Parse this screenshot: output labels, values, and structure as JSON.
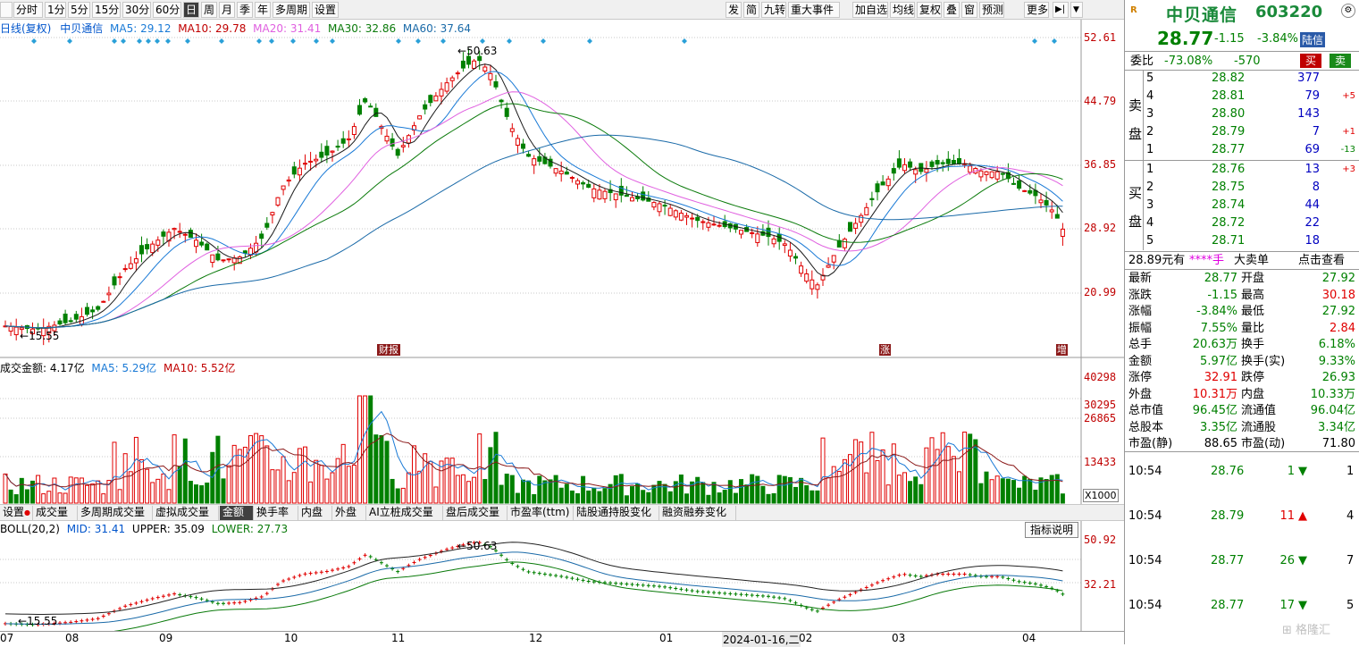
{
  "toolbar_left": [
    "分时",
    "1分",
    "5分",
    "15分",
    "30分",
    "60分",
    "日",
    "周",
    "月",
    "季",
    "年",
    "多周期",
    "设置"
  ],
  "toolbar_active": "日",
  "toolbar_right": [
    "发",
    "简",
    "九转",
    "重大事件",
    "加自选",
    "均线",
    "复权",
    "叠",
    "窗",
    "预测",
    "更多"
  ],
  "main_legend": {
    "title": "日线(复权)",
    "name": "中贝通信",
    "ma5": "MA5: 29.12",
    "ma10": "MA10: 29.78",
    "ma20": "MA20: 31.41",
    "ma30": "MA30: 32.86",
    "ma60": "MA60: 37.64"
  },
  "price_axis": [
    "52.61",
    "44.79",
    "36.85",
    "28.92",
    "20.99"
  ],
  "price_annotations": {
    "high": "50.63",
    "low": "15.55"
  },
  "event_markers": [
    "财报",
    "涨",
    "增"
  ],
  "volume_legend": {
    "title": "成交金额: 4.17亿",
    "ma5": "MA5: 5.29亿",
    "ma10": "MA10: 5.52亿"
  },
  "volume_axis": [
    "40298",
    "30295",
    "26865",
    "13433"
  ],
  "volume_unit": "X1000",
  "indicator_tabs": [
    "设置",
    "成交量",
    "多周期成交量",
    "虚拟成交量",
    "金额",
    "换手率",
    "内盘",
    "外盘",
    "AI立桩成交量",
    "盘后成交量",
    "市盈率(ttm)",
    "陆股通持股变化",
    "融资融券变化"
  ],
  "indicator_active": "金额",
  "boll_legend": {
    "title": "BOLL(20,2)",
    "mid": "MID: 31.41",
    "upper": "UPPER: 35.09",
    "lower": "LOWER: 27.73"
  },
  "boll_button": "指标说明",
  "boll_axis": [
    "50.92",
    "32.21"
  ],
  "boll_annotations": {
    "high": "50.63",
    "low": "15.55"
  },
  "date_axis": [
    "07",
    "08",
    "09",
    "10",
    "11",
    "12",
    "01",
    "2024-01-16,二",
    "02",
    "03",
    "04"
  ],
  "quote": {
    "logo": "R",
    "name": "中贝通信",
    "code": "603220",
    "price": "28.77",
    "change": "-1.15",
    "change_pct": "-3.84%",
    "board": "陆信",
    "weibi_label": "委比",
    "weibi": "-73.08%",
    "weicha": "-570",
    "buy_btn": "买",
    "sell_btn": "卖"
  },
  "sell_label": [
    "卖",
    "盘"
  ],
  "buy_label": [
    "买",
    "盘"
  ],
  "asks": [
    {
      "level": "5",
      "price": "28.82",
      "vol": "377",
      "delta": ""
    },
    {
      "level": "4",
      "price": "28.81",
      "vol": "79",
      "delta": "+5"
    },
    {
      "level": "3",
      "price": "28.80",
      "vol": "143",
      "delta": ""
    },
    {
      "level": "2",
      "price": "28.79",
      "vol": "7",
      "delta": "+1"
    },
    {
      "level": "1",
      "price": "28.77",
      "vol": "69",
      "delta": "-13"
    }
  ],
  "bids": [
    {
      "level": "1",
      "price": "28.76",
      "vol": "13",
      "delta": "+3"
    },
    {
      "level": "2",
      "price": "28.75",
      "vol": "8",
      "delta": ""
    },
    {
      "level": "3",
      "price": "28.74",
      "vol": "44",
      "delta": ""
    },
    {
      "level": "4",
      "price": "28.72",
      "vol": "22",
      "delta": ""
    },
    {
      "level": "5",
      "price": "28.71",
      "vol": "18",
      "delta": ""
    }
  ],
  "bigorder": {
    "price": "28.89元有",
    "qty": "****手",
    "label": "大卖单",
    "link": "点击查看"
  },
  "stats": [
    {
      "l1": "最新",
      "v1": "28.77",
      "c1": "green",
      "l2": "开盘",
      "v2": "27.92",
      "c2": "green"
    },
    {
      "l1": "涨跌",
      "v1": "-1.15",
      "c1": "green",
      "l2": "最高",
      "v2": "30.18",
      "c2": "red"
    },
    {
      "l1": "涨幅",
      "v1": "-3.84%",
      "c1": "green",
      "l2": "最低",
      "v2": "27.92",
      "c2": "green"
    },
    {
      "l1": "振幅",
      "v1": "7.55%",
      "c1": "green",
      "l2": "量比",
      "v2": "2.84",
      "c2": "red"
    },
    {
      "l1": "总手",
      "v1": "20.63万",
      "c1": "green",
      "l2": "换手",
      "v2": "6.18%",
      "c2": "green"
    },
    {
      "l1": "金额",
      "v1": "5.97亿",
      "c1": "green",
      "l2": "换手(实)",
      "v2": "9.33%",
      "c2": "green"
    },
    {
      "l1": "涨停",
      "v1": "32.91",
      "c1": "red",
      "l2": "跌停",
      "v2": "26.93",
      "c2": "green"
    },
    {
      "l1": "外盘",
      "v1": "10.31万",
      "c1": "red",
      "l2": "内盘",
      "v2": "10.33万",
      "c2": "green"
    },
    {
      "l1": "总市值",
      "v1": "96.45亿",
      "c1": "green",
      "l2": "流通值",
      "v2": "96.04亿",
      "c2": "green"
    },
    {
      "l1": "总股本",
      "v1": "3.35亿",
      "c1": "green",
      "l2": "流通股",
      "v2": "3.34亿",
      "c2": "green"
    },
    {
      "l1": "市盈(静)",
      "v1": "88.65",
      "c1": "black",
      "l2": "市盈(动)",
      "v2": "71.80",
      "c2": "black"
    }
  ],
  "ticks": [
    {
      "time": "10:54",
      "price": "28.76",
      "vol": "1",
      "dir": "down",
      "count": "1"
    },
    {
      "time": "10:54",
      "price": "28.79",
      "vol": "11",
      "dir": "up",
      "count": "4"
    },
    {
      "time": "10:54",
      "price": "28.77",
      "vol": "26",
      "dir": "down",
      "count": "7"
    },
    {
      "time": "10:54",
      "price": "28.77",
      "vol": "17",
      "dir": "down",
      "count": "5"
    }
  ],
  "watermark": "格隆汇",
  "colors": {
    "up": "#e00000",
    "down": "#008000",
    "ma5": "#1a1a1a",
    "ma10": "#1a7ad6",
    "ma20": "#e060e0",
    "ma30": "#0a7a0a",
    "ma60": "#1a6aa8"
  }
}
